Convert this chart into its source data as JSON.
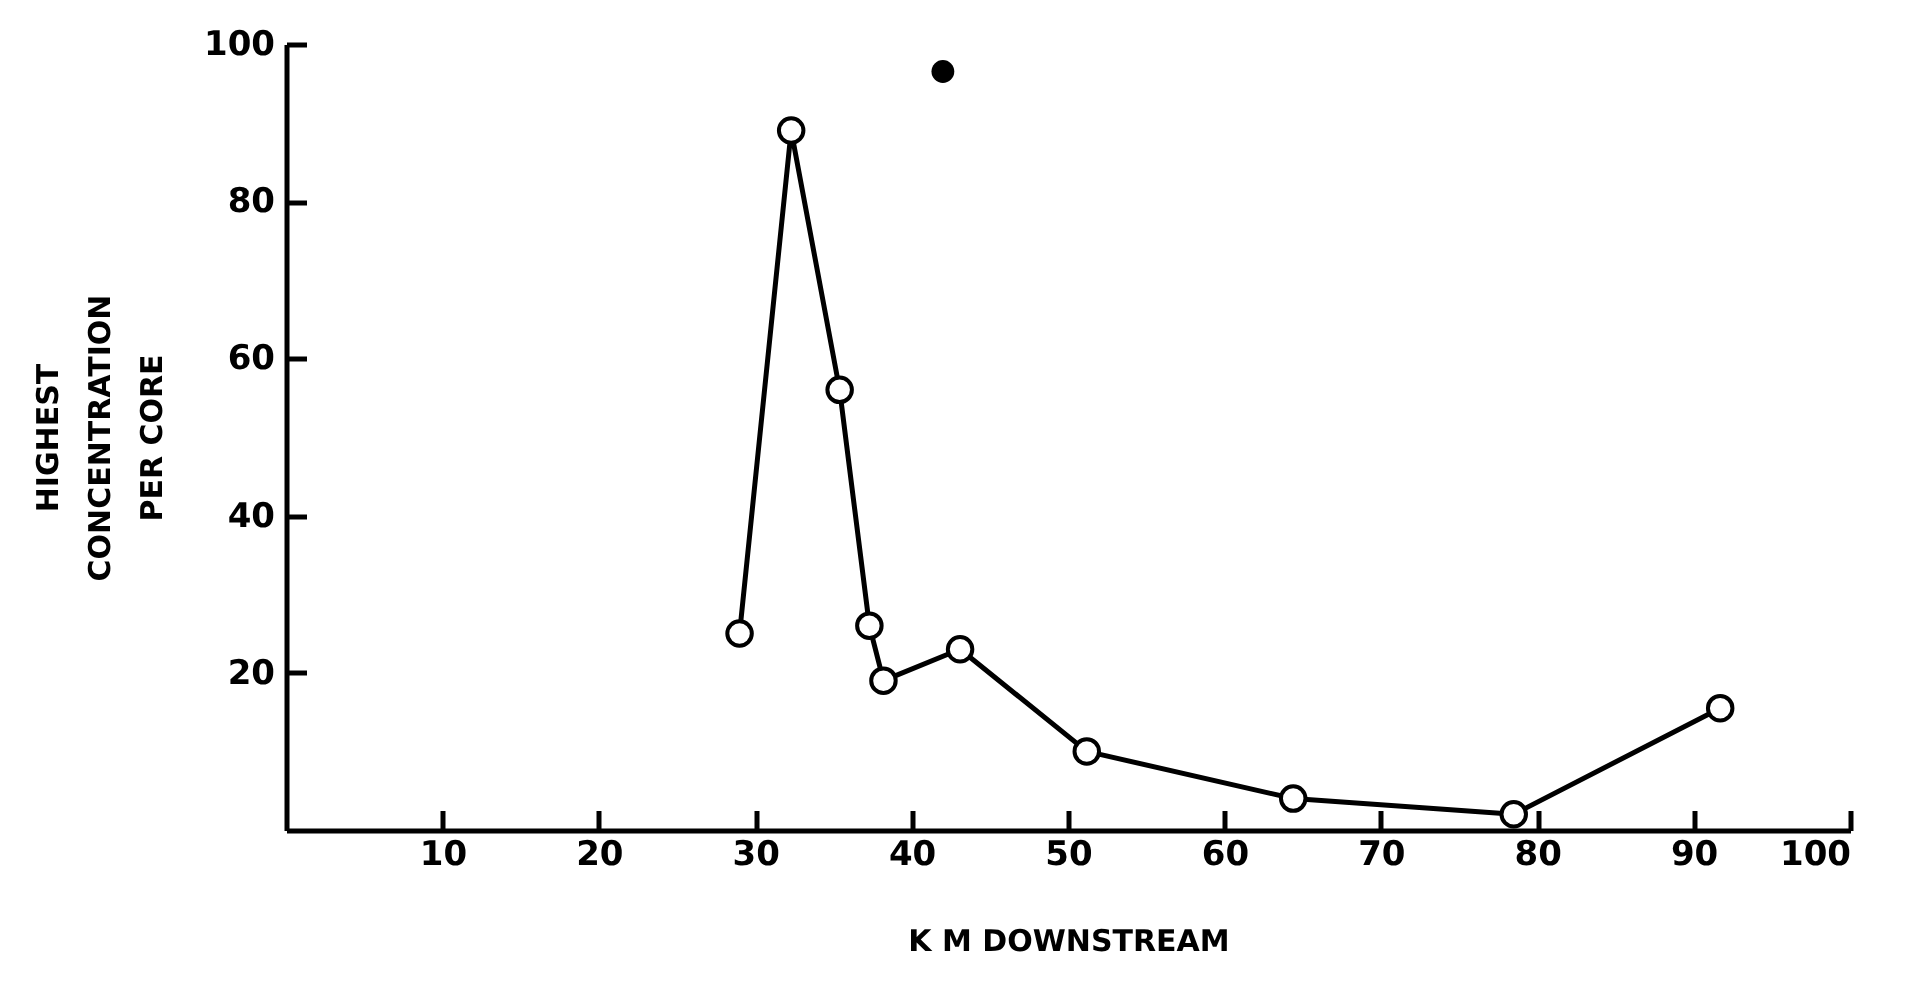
{
  "chart_data": {
    "type": "line",
    "xlabel": "K M DOWNSTREAM",
    "ylabel": "HIGHEST\nCONCENTRATION\nPER CORE",
    "xlim": [
      0,
      100
    ],
    "ylim": [
      0,
      100
    ],
    "xticks": [
      10,
      20,
      30,
      40,
      50,
      60,
      70,
      80,
      90,
      100
    ],
    "yticks": [
      20,
      40,
      60,
      80,
      100
    ],
    "marker": "circle",
    "line_style": "solid",
    "grid": false,
    "series": [
      {
        "color": "#000000",
        "x": [
          29.0,
          32.3,
          35.4,
          37.3,
          38.2,
          43.1,
          51.2,
          64.4,
          78.5,
          91.7
        ],
        "values": [
          25,
          89,
          56,
          26,
          19,
          23,
          10,
          4,
          2,
          15.5
        ]
      },
      {
        "type": "scatter",
        "color": "#000000",
        "x": [
          42.0
        ],
        "values": [
          96.5
        ]
      }
    ]
  }
}
